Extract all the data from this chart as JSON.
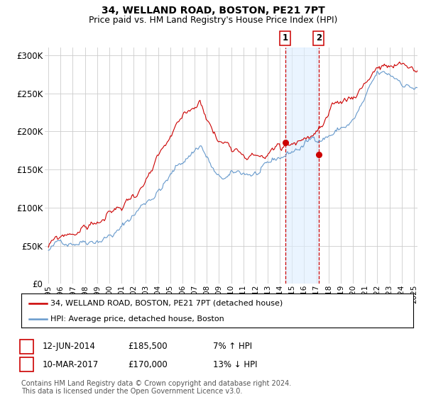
{
  "title": "34, WELLAND ROAD, BOSTON, PE21 7PT",
  "subtitle": "Price paid vs. HM Land Registry's House Price Index (HPI)",
  "ylabel_ticks": [
    "£0",
    "£50K",
    "£100K",
    "£150K",
    "£200K",
    "£250K",
    "£300K"
  ],
  "ytick_vals": [
    0,
    50000,
    100000,
    150000,
    200000,
    250000,
    300000
  ],
  "ylim": [
    0,
    310000
  ],
  "xlim_start": 1994.7,
  "xlim_end": 2025.3,
  "sale1_date": 2014.44,
  "sale1_price": 185500,
  "sale2_date": 2017.19,
  "sale2_price": 170000,
  "legend_line1": "34, WELLAND ROAD, BOSTON, PE21 7PT (detached house)",
  "legend_line2": "HPI: Average price, detached house, Boston",
  "annotation1_date": "12-JUN-2014",
  "annotation1_price": "£185,500",
  "annotation1_hpi": "7% ↑ HPI",
  "annotation2_date": "10-MAR-2017",
  "annotation2_price": "£170,000",
  "annotation2_hpi": "13% ↓ HPI",
  "footer": "Contains HM Land Registry data © Crown copyright and database right 2024.\nThis data is licensed under the Open Government Licence v3.0.",
  "line_red": "#cc0000",
  "line_blue": "#6699cc",
  "shade_blue": "#ddeeff",
  "grid_color": "#cccccc",
  "bg_color": "#ffffff"
}
